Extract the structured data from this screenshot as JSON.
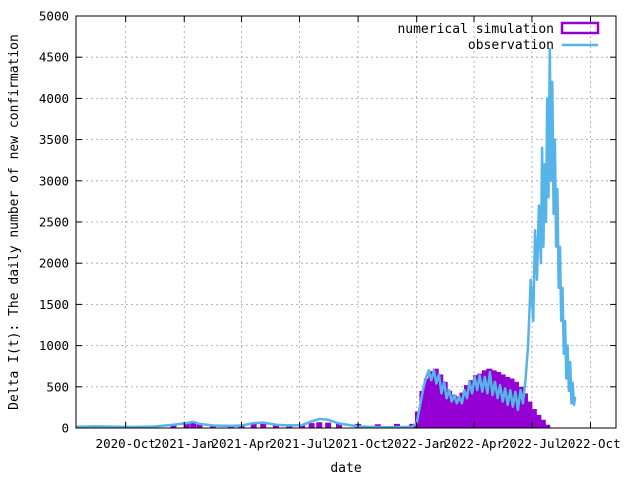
{
  "chart_data": {
    "type": "bar",
    "xlabel": "date",
    "ylabel": "Delta I(t): The daily number of new confirmation",
    "ylim": [
      0,
      5000
    ],
    "xlim": [
      "2020-07-15",
      "2022-11-10"
    ],
    "grid": true,
    "legend_position": "top-right",
    "y_ticks": [
      0,
      500,
      1000,
      1500,
      2000,
      2500,
      3000,
      3500,
      4000,
      4500,
      5000
    ],
    "x_ticks": [
      {
        "label": "2020-Oct",
        "date": "2020-10-01"
      },
      {
        "label": "2021-Jan",
        "date": "2021-01-01"
      },
      {
        "label": "2021-Apr",
        "date": "2021-04-01"
      },
      {
        "label": "2021-Jul",
        "date": "2021-07-01"
      },
      {
        "label": "2021-Oct",
        "date": "2021-10-01"
      },
      {
        "label": "2022-Jan",
        "date": "2022-01-01"
      },
      {
        "label": "2022-Apr",
        "date": "2022-04-01"
      },
      {
        "label": "2022-Jul",
        "date": "2022-07-01"
      },
      {
        "label": "2022-Oct",
        "date": "2022-10-01"
      }
    ],
    "series": [
      {
        "name": "numerical simulation",
        "style": "bars",
        "color": "#9400d3",
        "points": [
          [
            "2020-07-20",
            25
          ],
          [
            "2020-08-10",
            25
          ],
          [
            "2020-09-01",
            20
          ],
          [
            "2020-10-01",
            20
          ],
          [
            "2020-11-15",
            30
          ],
          [
            "2020-12-15",
            40
          ],
          [
            "2021-01-05",
            55
          ],
          [
            "2021-01-15",
            80
          ],
          [
            "2021-01-25",
            60
          ],
          [
            "2021-02-15",
            35
          ],
          [
            "2021-03-15",
            30
          ],
          [
            "2021-04-01",
            35
          ],
          [
            "2021-04-20",
            55
          ],
          [
            "2021-05-05",
            60
          ],
          [
            "2021-05-25",
            45
          ],
          [
            "2021-06-15",
            45
          ],
          [
            "2021-07-05",
            50
          ],
          [
            "2021-07-20",
            60
          ],
          [
            "2021-08-01",
            70
          ],
          [
            "2021-08-15",
            65
          ],
          [
            "2021-09-01",
            55
          ],
          [
            "2021-10-01",
            50
          ],
          [
            "2021-11-01",
            45
          ],
          [
            "2021-12-01",
            50
          ],
          [
            "2021-12-25",
            50
          ],
          [
            "2022-01-03",
            200
          ],
          [
            "2022-01-10",
            450
          ],
          [
            "2022-01-17",
            600
          ],
          [
            "2022-01-24",
            690
          ],
          [
            "2022-01-31",
            720
          ],
          [
            "2022-02-07",
            650
          ],
          [
            "2022-02-14",
            560
          ],
          [
            "2022-02-21",
            450
          ],
          [
            "2022-02-28",
            400
          ],
          [
            "2022-03-07",
            380
          ],
          [
            "2022-03-14",
            430
          ],
          [
            "2022-03-21",
            520
          ],
          [
            "2022-03-28",
            580
          ],
          [
            "2022-04-04",
            640
          ],
          [
            "2022-04-11",
            660
          ],
          [
            "2022-04-18",
            700
          ],
          [
            "2022-04-25",
            720
          ],
          [
            "2022-05-02",
            700
          ],
          [
            "2022-05-09",
            680
          ],
          [
            "2022-05-16",
            650
          ],
          [
            "2022-05-23",
            620
          ],
          [
            "2022-05-30",
            600
          ],
          [
            "2022-06-06",
            560
          ],
          [
            "2022-06-13",
            500
          ],
          [
            "2022-06-20",
            420
          ],
          [
            "2022-06-27",
            320
          ],
          [
            "2022-07-04",
            230
          ],
          [
            "2022-07-11",
            160
          ],
          [
            "2022-07-18",
            100
          ],
          [
            "2022-07-25",
            40
          ]
        ]
      },
      {
        "name": "observation",
        "style": "lines",
        "color": "#56b4e9",
        "points": [
          [
            "2020-07-15",
            15
          ],
          [
            "2020-08-15",
            20
          ],
          [
            "2020-09-15",
            15
          ],
          [
            "2020-10-15",
            12
          ],
          [
            "2020-11-15",
            18
          ],
          [
            "2020-12-15",
            40
          ],
          [
            "2021-01-05",
            60
          ],
          [
            "2021-01-15",
            75
          ],
          [
            "2021-01-25",
            50
          ],
          [
            "2021-02-15",
            30
          ],
          [
            "2021-03-15",
            25
          ],
          [
            "2021-04-01",
            30
          ],
          [
            "2021-04-20",
            60
          ],
          [
            "2021-05-05",
            65
          ],
          [
            "2021-05-25",
            40
          ],
          [
            "2021-06-15",
            30
          ],
          [
            "2021-07-05",
            35
          ],
          [
            "2021-07-20",
            80
          ],
          [
            "2021-08-01",
            110
          ],
          [
            "2021-08-15",
            100
          ],
          [
            "2021-09-01",
            55
          ],
          [
            "2021-10-01",
            20
          ],
          [
            "2021-11-01",
            8
          ],
          [
            "2021-12-01",
            10
          ],
          [
            "2021-12-25",
            15
          ],
          [
            "2022-01-01",
            60
          ],
          [
            "2022-01-07",
            300
          ],
          [
            "2022-01-12",
            500
          ],
          [
            "2022-01-16",
            620
          ],
          [
            "2022-01-20",
            700
          ],
          [
            "2022-01-24",
            580
          ],
          [
            "2022-01-28",
            700
          ],
          [
            "2022-02-01",
            540
          ],
          [
            "2022-02-05",
            650
          ],
          [
            "2022-02-09",
            420
          ],
          [
            "2022-02-13",
            560
          ],
          [
            "2022-02-17",
            360
          ],
          [
            "2022-02-21",
            460
          ],
          [
            "2022-02-25",
            320
          ],
          [
            "2022-03-01",
            400
          ],
          [
            "2022-03-05",
            300
          ],
          [
            "2022-03-09",
            380
          ],
          [
            "2022-03-13",
            300
          ],
          [
            "2022-03-17",
            460
          ],
          [
            "2022-03-21",
            360
          ],
          [
            "2022-03-25",
            560
          ],
          [
            "2022-03-29",
            420
          ],
          [
            "2022-04-02",
            620
          ],
          [
            "2022-04-06",
            460
          ],
          [
            "2022-04-10",
            640
          ],
          [
            "2022-04-14",
            440
          ],
          [
            "2022-04-18",
            620
          ],
          [
            "2022-04-22",
            420
          ],
          [
            "2022-04-26",
            680
          ],
          [
            "2022-04-30",
            400
          ],
          [
            "2022-05-04",
            560
          ],
          [
            "2022-05-08",
            360
          ],
          [
            "2022-05-12",
            520
          ],
          [
            "2022-05-16",
            320
          ],
          [
            "2022-05-20",
            480
          ],
          [
            "2022-05-24",
            280
          ],
          [
            "2022-05-28",
            460
          ],
          [
            "2022-06-01",
            260
          ],
          [
            "2022-06-05",
            440
          ],
          [
            "2022-06-09",
            220
          ],
          [
            "2022-06-13",
            460
          ],
          [
            "2022-06-17",
            300
          ],
          [
            "2022-06-21",
            600
          ],
          [
            "2022-06-25",
            1000
          ],
          [
            "2022-06-29",
            1800
          ],
          [
            "2022-07-03",
            1300
          ],
          [
            "2022-07-06",
            2400
          ],
          [
            "2022-07-09",
            1800
          ],
          [
            "2022-07-12",
            2700
          ],
          [
            "2022-07-15",
            2000
          ],
          [
            "2022-07-17",
            3400
          ],
          [
            "2022-07-19",
            2200
          ],
          [
            "2022-07-21",
            3200
          ],
          [
            "2022-07-23",
            2500
          ],
          [
            "2022-07-25",
            4000
          ],
          [
            "2022-07-27",
            2800
          ],
          [
            "2022-07-29",
            4600
          ],
          [
            "2022-07-31",
            3000
          ],
          [
            "2022-08-02",
            4200
          ],
          [
            "2022-08-04",
            2600
          ],
          [
            "2022-08-06",
            3500
          ],
          [
            "2022-08-08",
            2200
          ],
          [
            "2022-08-10",
            2900
          ],
          [
            "2022-08-12",
            1700
          ],
          [
            "2022-08-14",
            2200
          ],
          [
            "2022-08-16",
            1300
          ],
          [
            "2022-08-18",
            1700
          ],
          [
            "2022-08-20",
            900
          ],
          [
            "2022-08-22",
            1300
          ],
          [
            "2022-08-24",
            600
          ],
          [
            "2022-08-26",
            1000
          ],
          [
            "2022-08-28",
            450
          ],
          [
            "2022-08-30",
            800
          ],
          [
            "2022-09-01",
            300
          ],
          [
            "2022-09-03",
            550
          ],
          [
            "2022-09-05",
            280
          ],
          [
            "2022-09-07",
            380
          ]
        ]
      }
    ]
  }
}
